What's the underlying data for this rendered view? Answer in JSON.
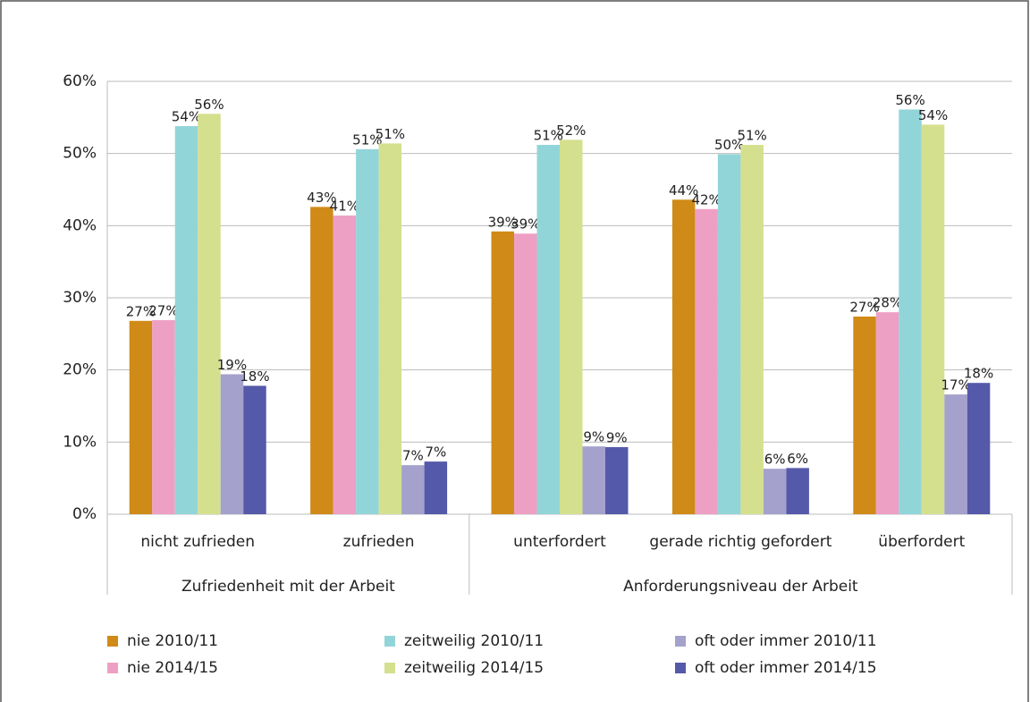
{
  "chart_data": {
    "type": "bar",
    "groups": [
      {
        "label": "Zufriedenheit mit der Arbeit",
        "categories": [
          "nicht zufrieden",
          "zufrieden"
        ]
      },
      {
        "label": "Anforderungsniveau der Arbeit",
        "categories": [
          "unterfordert",
          "gerade richtig gefordert",
          "überfordert"
        ]
      }
    ],
    "series": [
      {
        "name": "nie 2010/11",
        "color": "#d08a17",
        "values": [
          26.8,
          42.6,
          39.2,
          43.6,
          27.4
        ],
        "value_labels": [
          "27%",
          "43%",
          "39%",
          "44%",
          "27%"
        ]
      },
      {
        "name": "nie 2014/15",
        "color": "#eea0c4",
        "values": [
          26.9,
          41.4,
          38.9,
          42.3,
          28.0
        ],
        "value_labels": [
          "27%",
          "41%",
          "39%",
          "42%",
          "28%"
        ]
      },
      {
        "name": "zeitweilig 2010/11",
        "color": "#92d5d9",
        "values": [
          53.8,
          50.6,
          51.2,
          49.9,
          56.1
        ],
        "value_labels": [
          "54%",
          "51%",
          "51%",
          "50%",
          "56%"
        ]
      },
      {
        "name": "zeitweilig 2014/15",
        "color": "#d4e08e",
        "values": [
          55.5,
          51.4,
          51.9,
          51.2,
          54.0
        ],
        "value_labels": [
          "56%",
          "51%",
          "52%",
          "51%",
          "54%"
        ]
      },
      {
        "name": "oft oder immer 2010/11",
        "color": "#a4a2cc",
        "values": [
          19.4,
          6.8,
          9.4,
          6.3,
          16.6
        ],
        "value_labels": [
          "19%",
          "7%",
          "9%",
          "6%",
          "17%"
        ]
      },
      {
        "name": "oft oder immer 2014/15",
        "color": "#5559a9",
        "values": [
          17.8,
          7.3,
          9.3,
          6.4,
          18.2
        ],
        "value_labels": [
          "18%",
          "7%",
          "9%",
          "6%",
          "18%"
        ]
      }
    ],
    "ylim": [
      0,
      60
    ],
    "yticks": [
      {
        "value": 0,
        "label": "0%"
      },
      {
        "value": 10,
        "label": "10%"
      },
      {
        "value": 20,
        "label": "20%"
      },
      {
        "value": 30,
        "label": "30%"
      },
      {
        "value": 40,
        "label": "40%"
      },
      {
        "value": 50,
        "label": "50%"
      },
      {
        "value": 60,
        "label": "60%"
      }
    ],
    "grid": true,
    "legend": "bottom"
  }
}
